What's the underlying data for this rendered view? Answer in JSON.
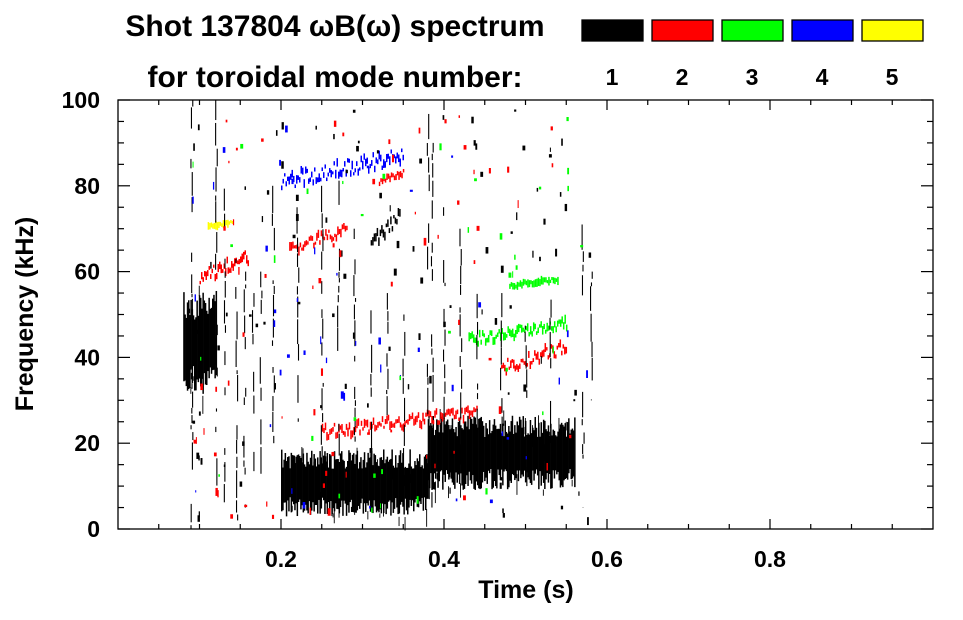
{
  "chart_data": {
    "type": "heatmap",
    "title_line1": "Shot 137804 ωB(ω) spectrum",
    "title_line2": "for toroidal mode number:",
    "xlabel": "Time (s)",
    "ylabel": "Frequency (kHz)",
    "xlim": [
      0.0,
      1.0
    ],
    "ylim": [
      0,
      100
    ],
    "x_major_ticks": [
      0.2,
      0.4,
      0.6,
      0.8
    ],
    "x_tick_labels": [
      "0.2",
      "0.4",
      "0.6",
      "0.8"
    ],
    "y_major_ticks": [
      0,
      20,
      40,
      60,
      80,
      100
    ],
    "y_tick_labels": [
      "0",
      "20",
      "40",
      "60",
      "80",
      "100"
    ],
    "legend": [
      {
        "n": "1",
        "color": "#000000"
      },
      {
        "n": "2",
        "color": "#ff0000"
      },
      {
        "n": "3",
        "color": "#00ff00"
      },
      {
        "n": "4",
        "color": "#0000ff"
      },
      {
        "n": "5",
        "color": "#ffff00"
      }
    ],
    "spectral_features": [
      {
        "mode": 1,
        "t": [
          0.08,
          0.12
        ],
        "f": [
          30,
          58
        ],
        "note": "broadband"
      },
      {
        "mode": 1,
        "t": [
          0.2,
          0.38
        ],
        "f": [
          2,
          20
        ],
        "note": "broadband"
      },
      {
        "mode": 1,
        "t": [
          0.38,
          0.56
        ],
        "f": [
          8,
          28
        ],
        "note": "broadband"
      },
      {
        "mode": 1,
        "t": [
          0.31,
          0.345
        ],
        "f": [
          64,
          76
        ]
      },
      {
        "mode": 2,
        "t": [
          0.1,
          0.16
        ],
        "f": [
          56,
          66
        ]
      },
      {
        "mode": 2,
        "t": [
          0.21,
          0.28
        ],
        "f": [
          63,
          72
        ]
      },
      {
        "mode": 2,
        "t": [
          0.32,
          0.35
        ],
        "f": [
          80,
          84
        ]
      },
      {
        "mode": 2,
        "t": [
          0.25,
          0.44
        ],
        "f": [
          20,
          30
        ]
      },
      {
        "mode": 2,
        "t": [
          0.47,
          0.55
        ],
        "f": [
          35,
          45
        ]
      },
      {
        "mode": 3,
        "t": [
          0.48,
          0.54
        ],
        "f": [
          56,
          59
        ]
      },
      {
        "mode": 3,
        "t": [
          0.43,
          0.55
        ],
        "f": [
          42,
          50
        ]
      },
      {
        "mode": 4,
        "t": [
          0.2,
          0.35
        ],
        "f": [
          78,
          90
        ]
      },
      {
        "mode": 5,
        "t": [
          0.11,
          0.14
        ],
        "f": [
          70,
          72
        ]
      }
    ]
  }
}
